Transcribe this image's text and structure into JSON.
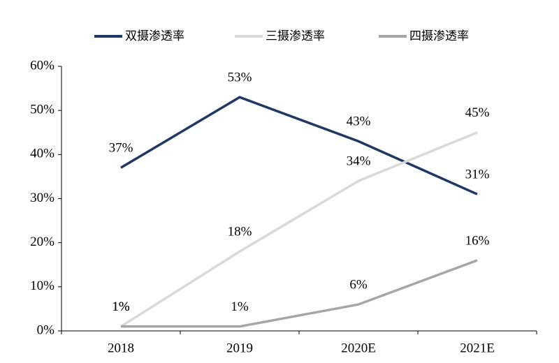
{
  "chart_data": {
    "type": "line",
    "categories": [
      "2018",
      "2019",
      "2020E",
      "2021E"
    ],
    "series": [
      {
        "name": "双摄渗透率",
        "color": "#1f3864",
        "values": [
          37,
          53,
          43,
          31
        ],
        "value_labels": [
          "37%",
          "53%",
          "43%",
          "31%"
        ]
      },
      {
        "name": "三摄渗透率",
        "color": "#d9d9d9",
        "values": [
          1,
          18,
          34,
          45
        ],
        "value_labels": [
          "1%",
          "18%",
          "34%",
          "45%"
        ]
      },
      {
        "name": "四摄渗透率",
        "color": "#a6a6a6",
        "values": [
          1,
          1,
          6,
          16
        ],
        "value_labels": [
          "1%",
          "1%",
          "6%",
          "16%"
        ]
      }
    ],
    "ylim": [
      0,
      60
    ],
    "yticks": [
      {
        "value": 0,
        "label": "0%"
      },
      {
        "value": 10,
        "label": "10%"
      },
      {
        "value": 20,
        "label": "20%"
      },
      {
        "value": 30,
        "label": "30%"
      },
      {
        "value": 40,
        "label": "40%"
      },
      {
        "value": 50,
        "label": "50%"
      },
      {
        "value": 60,
        "label": "60%"
      }
    ],
    "legend": "top"
  }
}
